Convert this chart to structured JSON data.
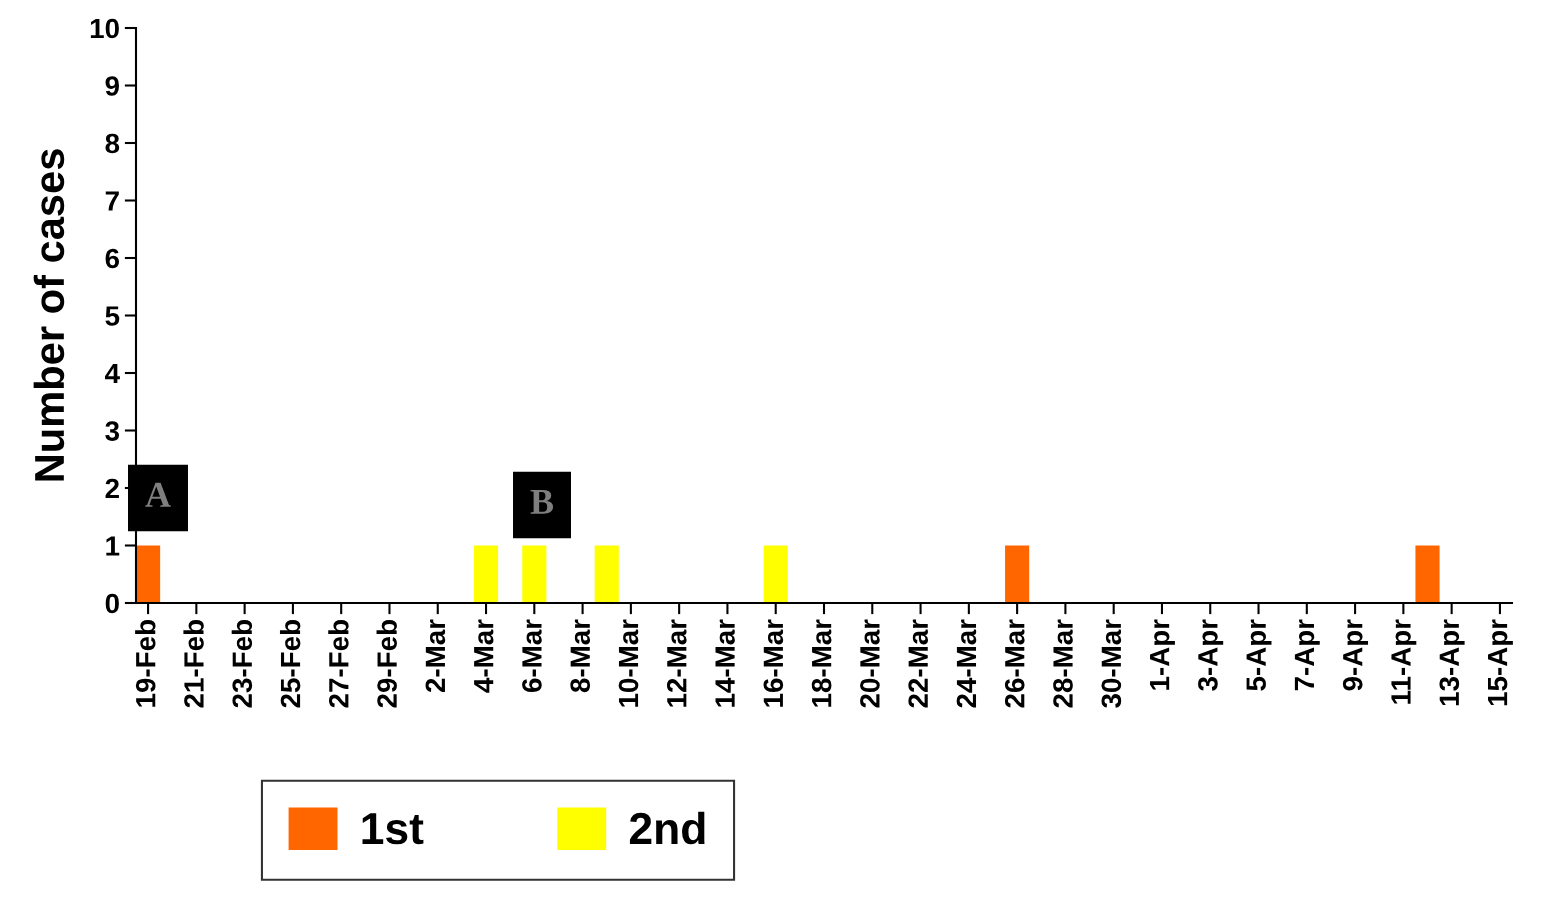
{
  "chart_data": {
    "type": "bar",
    "ylabel": "Number of cases",
    "categories": [
      "19-Feb",
      null,
      "21-Feb",
      null,
      "23-Feb",
      null,
      "25-Feb",
      null,
      "27-Feb",
      null,
      "29-Feb",
      null,
      "2-Mar",
      null,
      "4-Mar",
      null,
      "6-Mar",
      null,
      "8-Mar",
      null,
      "10-Mar",
      null,
      "12-Mar",
      null,
      "14-Mar",
      null,
      "16-Mar",
      null,
      "18-Mar",
      null,
      "20-Mar",
      null,
      "22-Mar",
      null,
      "24-Mar",
      null,
      "26-Mar",
      null,
      "28-Mar",
      null,
      "30-Mar",
      null,
      "1-Apr",
      null,
      "3-Apr",
      null,
      "5-Apr",
      null,
      "7-Apr",
      null,
      "9-Apr",
      null,
      "11-Apr",
      null,
      "13-Apr",
      null,
      "15-Apr"
    ],
    "series": [
      {
        "name": "1st",
        "color": "#ff6600",
        "values": [
          1,
          0,
          0,
          0,
          0,
          0,
          0,
          0,
          0,
          0,
          0,
          0,
          0,
          0,
          0,
          0,
          0,
          0,
          0,
          0,
          0,
          0,
          0,
          0,
          0,
          0,
          0,
          0,
          0,
          0,
          0,
          0,
          0,
          0,
          0,
          0,
          1,
          0,
          0,
          0,
          0,
          0,
          0,
          0,
          0,
          0,
          0,
          0,
          0,
          0,
          0,
          0,
          0,
          1,
          0,
          0,
          0
        ]
      },
      {
        "name": "2nd",
        "color": "#ffff00",
        "values": [
          0,
          0,
          0,
          0,
          0,
          0,
          0,
          0,
          0,
          0,
          0,
          0,
          0,
          0,
          1,
          0,
          1,
          0,
          0,
          1,
          0,
          0,
          0,
          0,
          0,
          0,
          1,
          0,
          0,
          0,
          0,
          0,
          0,
          0,
          0,
          0,
          0,
          0,
          0,
          0,
          0,
          0,
          0,
          0,
          0,
          0,
          0,
          0,
          0,
          0,
          0,
          0,
          0,
          0,
          0,
          0,
          0
        ]
      }
    ],
    "ylim": [
      0,
      10
    ],
    "yticks": [
      0,
      1,
      2,
      3,
      4,
      5,
      6,
      7,
      8,
      9,
      10
    ],
    "grid": false,
    "legend": "bottom",
    "annotations": [
      "A",
      "B"
    ]
  }
}
